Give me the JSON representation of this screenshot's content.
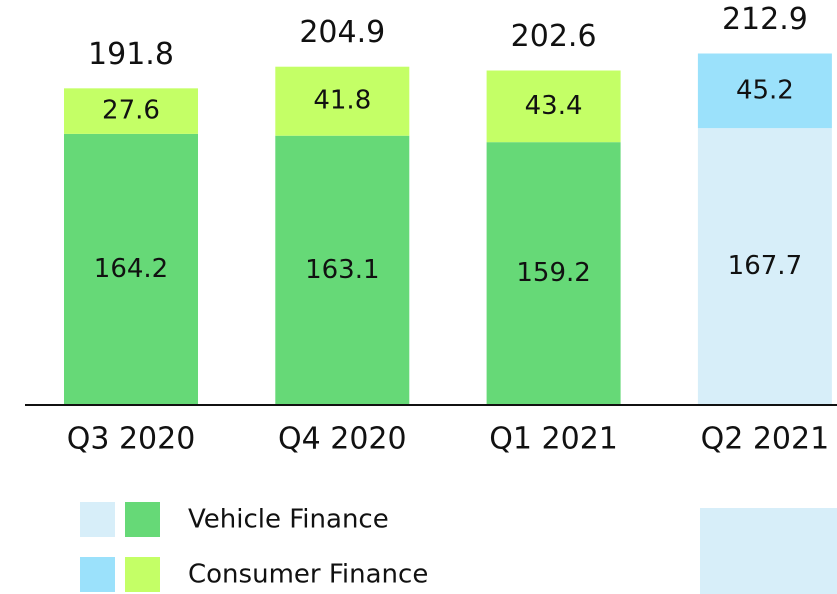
{
  "chart_data": {
    "type": "stacked_bar",
    "categories": [
      "Q3 2020",
      "Q4 2020",
      "Q1 2021",
      "Q2 2021"
    ],
    "series": [
      {
        "name": "Vehicle Finance",
        "colors": [
          "#66d977",
          "#66d977",
          "#66d977",
          "#d7eef9"
        ],
        "values": [
          164.2,
          163.1,
          159.2,
          167.7
        ]
      },
      {
        "name": "Consumer Finance",
        "colors": [
          "#c4ff66",
          "#c4ff66",
          "#c4ff66",
          "#9be1fb"
        ],
        "values": [
          27.6,
          41.8,
          43.4,
          45.2
        ]
      }
    ],
    "totals": [
      191.8,
      204.9,
      202.6,
      212.9
    ],
    "ylim": [
      0,
      245
    ]
  }
}
